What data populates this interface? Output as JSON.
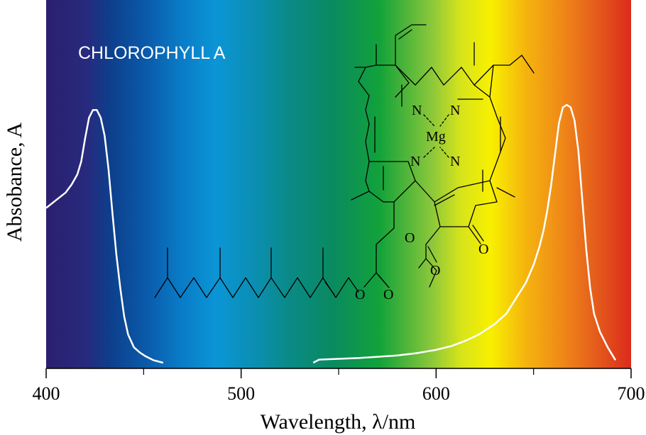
{
  "chart_data": {
    "type": "line",
    "title": "CHLOROPHYLL  A",
    "xlabel": "Wavelength, λ/nm",
    "ylabel": "Absobance, A",
    "xlim": [
      400,
      700
    ],
    "x_ticks": [
      400,
      500,
      600,
      700
    ],
    "x_tick_labels": [
      "400",
      "500",
      "600",
      "700"
    ],
    "x_minor_ticks": [
      450,
      550,
      650
    ],
    "grid": false,
    "legend": "none",
    "series": [
      {
        "color": "#ffffff",
        "points": [
          [
            400,
            0.6
          ],
          [
            405,
            0.63
          ],
          [
            410,
            0.66
          ],
          [
            413,
            0.69
          ],
          [
            416,
            0.73
          ],
          [
            418,
            0.78
          ],
          [
            420,
            0.87
          ],
          [
            422,
            0.95
          ],
          [
            424,
            0.98
          ],
          [
            426,
            0.98
          ],
          [
            428,
            0.95
          ],
          [
            430,
            0.88
          ],
          [
            432,
            0.75
          ],
          [
            434,
            0.58
          ],
          [
            436,
            0.42
          ],
          [
            438,
            0.29
          ],
          [
            440,
            0.18
          ],
          [
            442,
            0.11
          ],
          [
            445,
            0.06
          ],
          [
            448,
            0.04
          ],
          [
            451,
            0.025
          ],
          [
            455,
            0.01
          ],
          [
            460,
            0.0
          ]
        ]
      },
      {
        "color": "#ffffff",
        "points": [
          [
            537,
            0.0
          ],
          [
            540,
            0.012
          ],
          [
            550,
            0.015
          ],
          [
            560,
            0.018
          ],
          [
            570,
            0.023
          ],
          [
            580,
            0.028
          ],
          [
            590,
            0.037
          ],
          [
            600,
            0.05
          ],
          [
            608,
            0.065
          ],
          [
            615,
            0.085
          ],
          [
            622,
            0.11
          ],
          [
            630,
            0.15
          ],
          [
            636,
            0.19
          ],
          [
            641,
            0.25
          ],
          [
            646,
            0.31
          ],
          [
            650,
            0.38
          ],
          [
            653,
            0.45
          ],
          [
            655,
            0.51
          ],
          [
            657,
            0.59
          ],
          [
            659,
            0.69
          ],
          [
            661,
            0.81
          ],
          [
            663,
            0.93
          ],
          [
            665,
            0.99
          ],
          [
            667,
            1.0
          ],
          [
            669,
            0.99
          ],
          [
            671,
            0.94
          ],
          [
            673,
            0.82
          ],
          [
            675,
            0.63
          ],
          [
            677,
            0.44
          ],
          [
            679,
            0.29
          ],
          [
            681,
            0.19
          ],
          [
            684,
            0.12
          ],
          [
            688,
            0.06
          ],
          [
            692,
            0.01
          ]
        ]
      }
    ],
    "ylim": [
      0,
      1
    ],
    "spectrum_colors": {
      "violet": "#2b1f6e",
      "blue": "#0a4a9a",
      "sky": "#0b95d6",
      "teal": "#0a8a74",
      "green": "#12a23a",
      "yellow": "#f5f000",
      "orange": "#f08a18",
      "red": "#dc2a1c"
    },
    "curve_color": "#ffffff"
  },
  "molecule": {
    "atoms": {
      "n1": "N",
      "n2": "N",
      "n3": "N",
      "n4": "N",
      "mg": "Mg",
      "o_ester1": "O",
      "o_ester2": "O",
      "o_ketone": "O",
      "o_methoxy1": "O",
      "o_methoxy2": "O"
    }
  }
}
